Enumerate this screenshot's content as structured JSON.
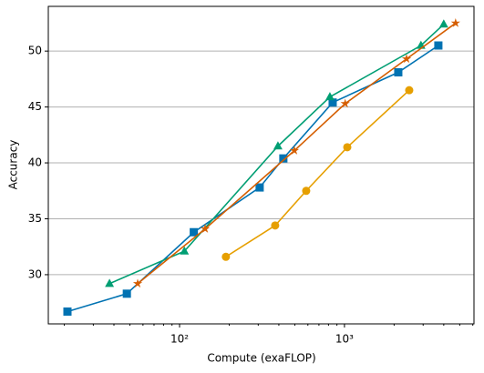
{
  "chart_data": {
    "type": "line",
    "x_label": "Compute (exaFLOP)",
    "y_label": "Accuracy",
    "xscale": "log",
    "xlim": [
      16,
      6100
    ],
    "ylim": [
      25.6,
      54
    ],
    "xticks": [
      {
        "value": 100,
        "label": "10²"
      },
      {
        "value": 1000,
        "label": "10³"
      }
    ],
    "xminorticks": [
      20,
      30,
      40,
      50,
      60,
      70,
      80,
      90,
      200,
      300,
      400,
      500,
      600,
      700,
      800,
      900,
      2000,
      3000,
      4000,
      5000,
      6000
    ],
    "yticks": [
      30,
      35,
      40,
      45,
      50
    ],
    "grid": "y",
    "series": [
      {
        "color": "#0072b2",
        "marker": "square",
        "x": [
          20.9,
          47.9,
          122,
          306,
          426,
          848,
          2120,
          3710
        ],
        "values": [
          26.7,
          28.3,
          33.8,
          37.8,
          40.4,
          45.4,
          48.1,
          50.5
        ]
      },
      {
        "color": "#009e73",
        "marker": "triangle",
        "x": [
          37.6,
          107,
          395,
          816,
          2910,
          4000
        ],
        "values": [
          29.2,
          32.1,
          41.5,
          45.9,
          50.5,
          52.4
        ]
      },
      {
        "color": "#d55e00",
        "marker": "star",
        "x": [
          55.7,
          143,
          497,
          1010,
          2380,
          4720
        ],
        "values": [
          29.2,
          34.1,
          41.1,
          45.3,
          49.3,
          52.5
        ]
      },
      {
        "color": "#e69f00",
        "marker": "circle",
        "x": [
          191,
          380,
          586,
          1040,
          2470
        ],
        "values": [
          31.6,
          34.4,
          37.5,
          41.4,
          46.5
        ]
      }
    ]
  }
}
